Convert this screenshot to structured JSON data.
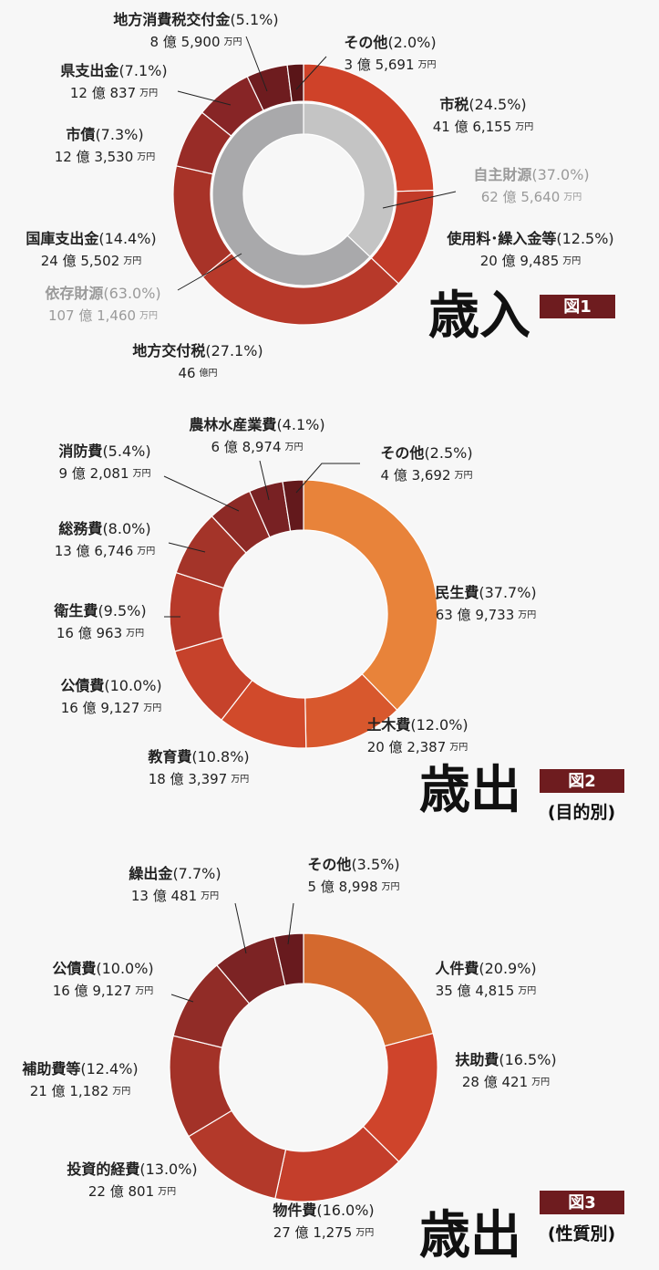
{
  "chart_data": [
    {
      "type": "donut",
      "title": "歳入",
      "badge": "図1",
      "categories": [
        "市税",
        "使用料･繰入金等",
        "地方交付税",
        "国庫支出金",
        "市債",
        "県支出金",
        "地方消費税交付金",
        "その他"
      ],
      "values": [
        24.5,
        12.5,
        27.1,
        14.4,
        7.3,
        7.1,
        5.1,
        2.0
      ],
      "value_labels": [
        "(24.5%)",
        "(12.5%)",
        "(27.1%)",
        "(14.4%)",
        "(7.3%)",
        "(7.1%)",
        "(5.1%)",
        "(2.0%)"
      ],
      "amounts": [
        "41 億 6,155",
        "20 億 9,485",
        "46",
        "24 億 5,502",
        "12 億 3,530",
        "12 億 837",
        "8 億 5,900",
        "3 億 5,691"
      ],
      "amount_units": [
        "万円",
        "万円",
        "億円",
        "万円",
        "万円",
        "万円",
        "万円",
        "万円"
      ],
      "colors": [
        "#cf4229",
        "#c23b29",
        "#b7392a",
        "#a83328",
        "#982c27",
        "#872526",
        "#6e1c1f",
        "#5a1518"
      ],
      "inner": {
        "categories": [
          "自主財源",
          "依存財源"
        ],
        "values": [
          37.0,
          63.0
        ],
        "value_labels": [
          "(37.0%)",
          "(63.0%)"
        ],
        "amounts": [
          "62 億 5,640",
          "107 億 1,460"
        ],
        "amount_units": [
          "万円",
          "万円"
        ],
        "colors": [
          "#c4c4c4",
          "#a9a9ab"
        ]
      }
    },
    {
      "type": "donut",
      "title": "歳出",
      "badge": "図2",
      "subtitle": "(目的別)",
      "categories": [
        "民生費",
        "土木費",
        "教育費",
        "公債費",
        "衛生費",
        "総務費",
        "消防費",
        "農林水産業費",
        "その他"
      ],
      "values": [
        37.7,
        12.0,
        10.8,
        10.0,
        9.5,
        8.0,
        5.4,
        4.1,
        2.5
      ],
      "value_labels": [
        "(37.7%)",
        "(12.0%)",
        "(10.8%)",
        "(10.0%)",
        "(9.5%)",
        "(8.0%)",
        "(5.4%)",
        "(4.1%)",
        "(2.5%)"
      ],
      "amounts": [
        "63 億 9,733",
        "20 億 2,387",
        "18 億 3,397",
        "16 億 9,127",
        "16 億 963",
        "13 億 6,746",
        "9 億 2,081",
        "6 億 8,974",
        "4 億 3,692"
      ],
      "amount_units": [
        "万円",
        "万円",
        "万円",
        "万円",
        "万円",
        "万円",
        "万円",
        "万円",
        "万円"
      ],
      "colors": [
        "#e8833a",
        "#d8582d",
        "#d14a2b",
        "#c6422b",
        "#b73a2a",
        "#a43429",
        "#8d2a26",
        "#782123",
        "#63191c"
      ]
    },
    {
      "type": "donut",
      "title": "歳出",
      "badge": "図3",
      "subtitle": "(性質別)",
      "categories": [
        "人件費",
        "扶助費",
        "物件費",
        "投資的経費",
        "補助費等",
        "公債費",
        "繰出金",
        "その他"
      ],
      "values": [
        20.9,
        16.5,
        16.0,
        13.0,
        12.4,
        10.0,
        7.7,
        3.5
      ],
      "value_labels": [
        "(20.9%)",
        "(16.5%)",
        "(16.0%)",
        "(13.0%)",
        "(12.4%)",
        "(10.0%)",
        "(7.7%)",
        "(3.5%)"
      ],
      "amounts": [
        "35 億 4,815",
        "28 億 421",
        "27 億 1,275",
        "22 億 801",
        "21 億 1,182",
        "16 億 9,127",
        "13 億 481",
        "5 億 8,998"
      ],
      "amount_units": [
        "万円",
        "万円",
        "万円",
        "万円",
        "万円",
        "万円",
        "万円",
        "万円"
      ],
      "colors": [
        "#d4692e",
        "#cf442b",
        "#c43e2b",
        "#b3392a",
        "#a33228",
        "#912c27",
        "#7c2324",
        "#681a1e"
      ]
    }
  ]
}
